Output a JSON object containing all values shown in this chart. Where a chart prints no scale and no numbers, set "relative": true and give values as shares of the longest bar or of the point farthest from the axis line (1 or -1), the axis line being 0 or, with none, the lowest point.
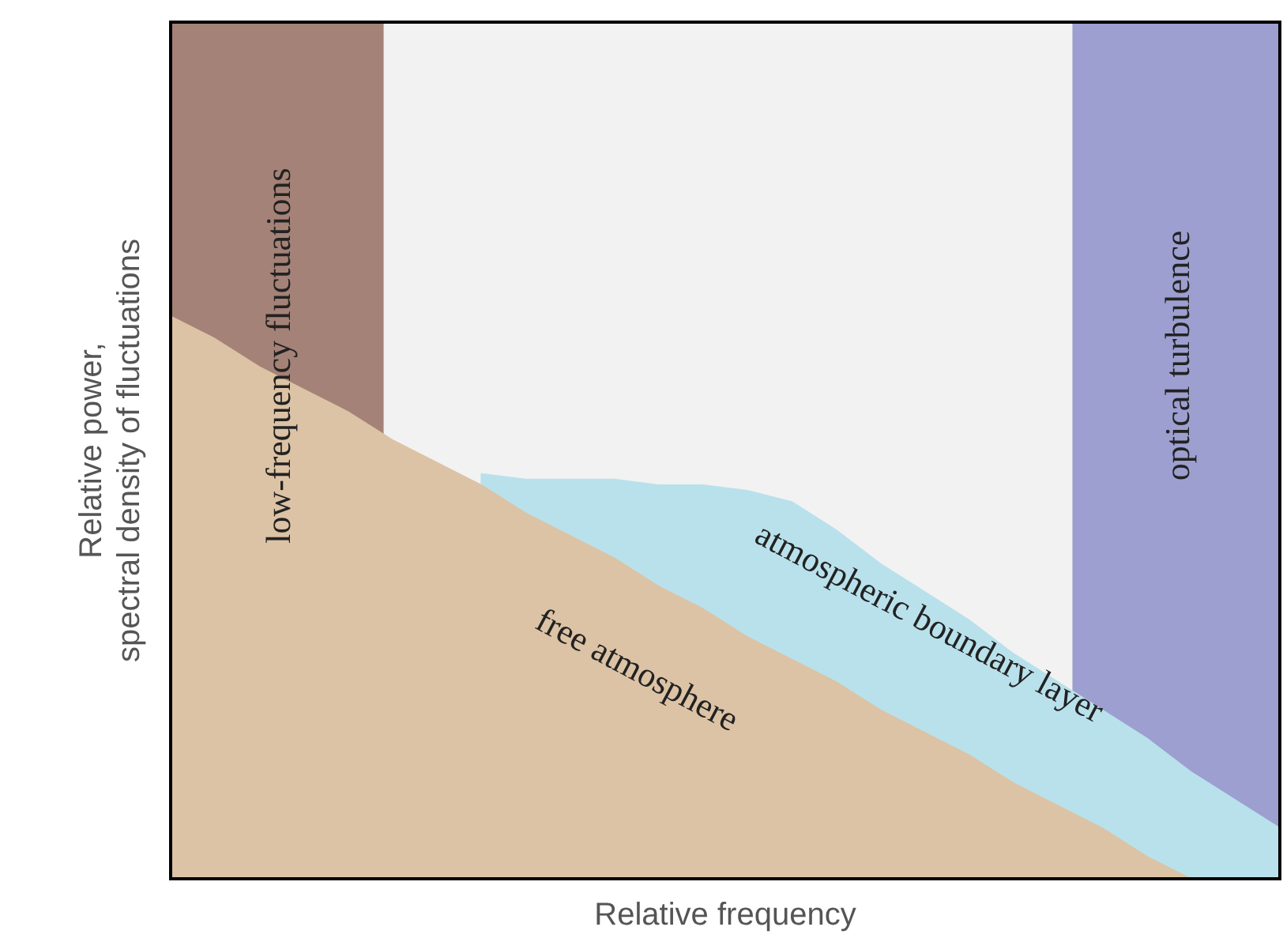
{
  "chart_data": {
    "type": "area",
    "relative": true,
    "xlabel": "Relative frequency",
    "ylabel": "Relative power,\nspectral density of fluctuations",
    "categories": [
      null,
      null,
      null,
      null,
      null,
      null,
      null,
      null,
      null,
      null,
      null,
      null,
      null,
      null,
      null,
      null,
      null,
      null,
      null,
      null,
      null,
      null,
      null,
      null,
      null,
      null
    ],
    "tick_labels": false,
    "legend": false,
    "grid": false,
    "series": [
      {
        "name": "atmospheric boundary layer",
        "color": "#b9e1eb",
        "values": [
          null,
          null,
          null,
          null,
          null,
          null,
          null,
          0.72,
          0.71,
          0.71,
          0.71,
          0.7,
          0.7,
          0.69,
          0.67,
          0.62,
          0.56,
          0.51,
          0.46,
          0.4,
          0.35,
          0.3,
          0.25,
          0.19,
          0.14,
          0.09
        ]
      },
      {
        "name": "free atmosphere",
        "color": "#dcc3a5",
        "values": [
          1,
          0.96,
          0.91,
          0.87,
          0.83,
          0.78,
          0.74,
          0.7,
          0.65,
          0.61,
          0.57,
          0.52,
          0.48,
          0.43,
          0.39,
          0.35,
          0.3,
          0.26,
          0.22,
          0.17,
          0.13,
          0.09,
          0.04,
          0,
          0,
          0
        ]
      }
    ],
    "annotations": [
      "low-frequency fluctuations",
      "optical turbulence"
    ]
  }
}
